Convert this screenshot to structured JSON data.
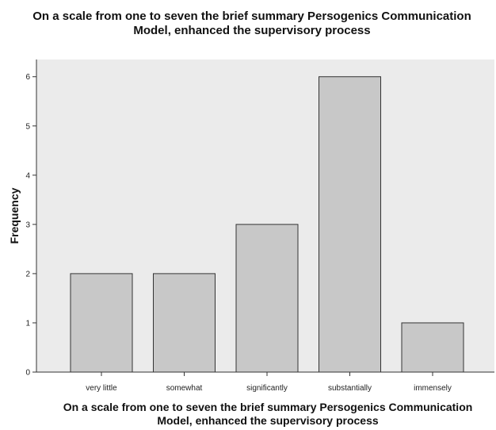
{
  "chart_data": {
    "type": "bar",
    "title": "On a scale from one to seven the brief summary Persogenics Communication Model, enhanced the supervisory process",
    "title_lines": [
      "On a scale from one to seven the brief summary Persogenics Communication",
      "Model, enhanced the supervisory process"
    ],
    "xlabel": "On a scale from one to seven the brief summary Persogenics Communication Model, enhanced the supervisory process",
    "xlabel_lines": [
      "On a scale from one to seven the brief summary Persogenics Communication",
      "Model, enhanced the supervisory process"
    ],
    "ylabel": "Frequency",
    "categories": [
      "very little",
      "somewhat",
      "significantly",
      "substantially",
      "immensely"
    ],
    "values": [
      2,
      2,
      3,
      6,
      1
    ],
    "ylim": [
      0,
      6.35
    ],
    "yticks": [
      0,
      1,
      2,
      3,
      4,
      5,
      6
    ],
    "grid": false,
    "legend": "none",
    "colors": {
      "plot_background": "#ebebeb",
      "bar_fill": "#c8c8c8",
      "bar_stroke": "#333333",
      "axis": "#333333"
    }
  }
}
